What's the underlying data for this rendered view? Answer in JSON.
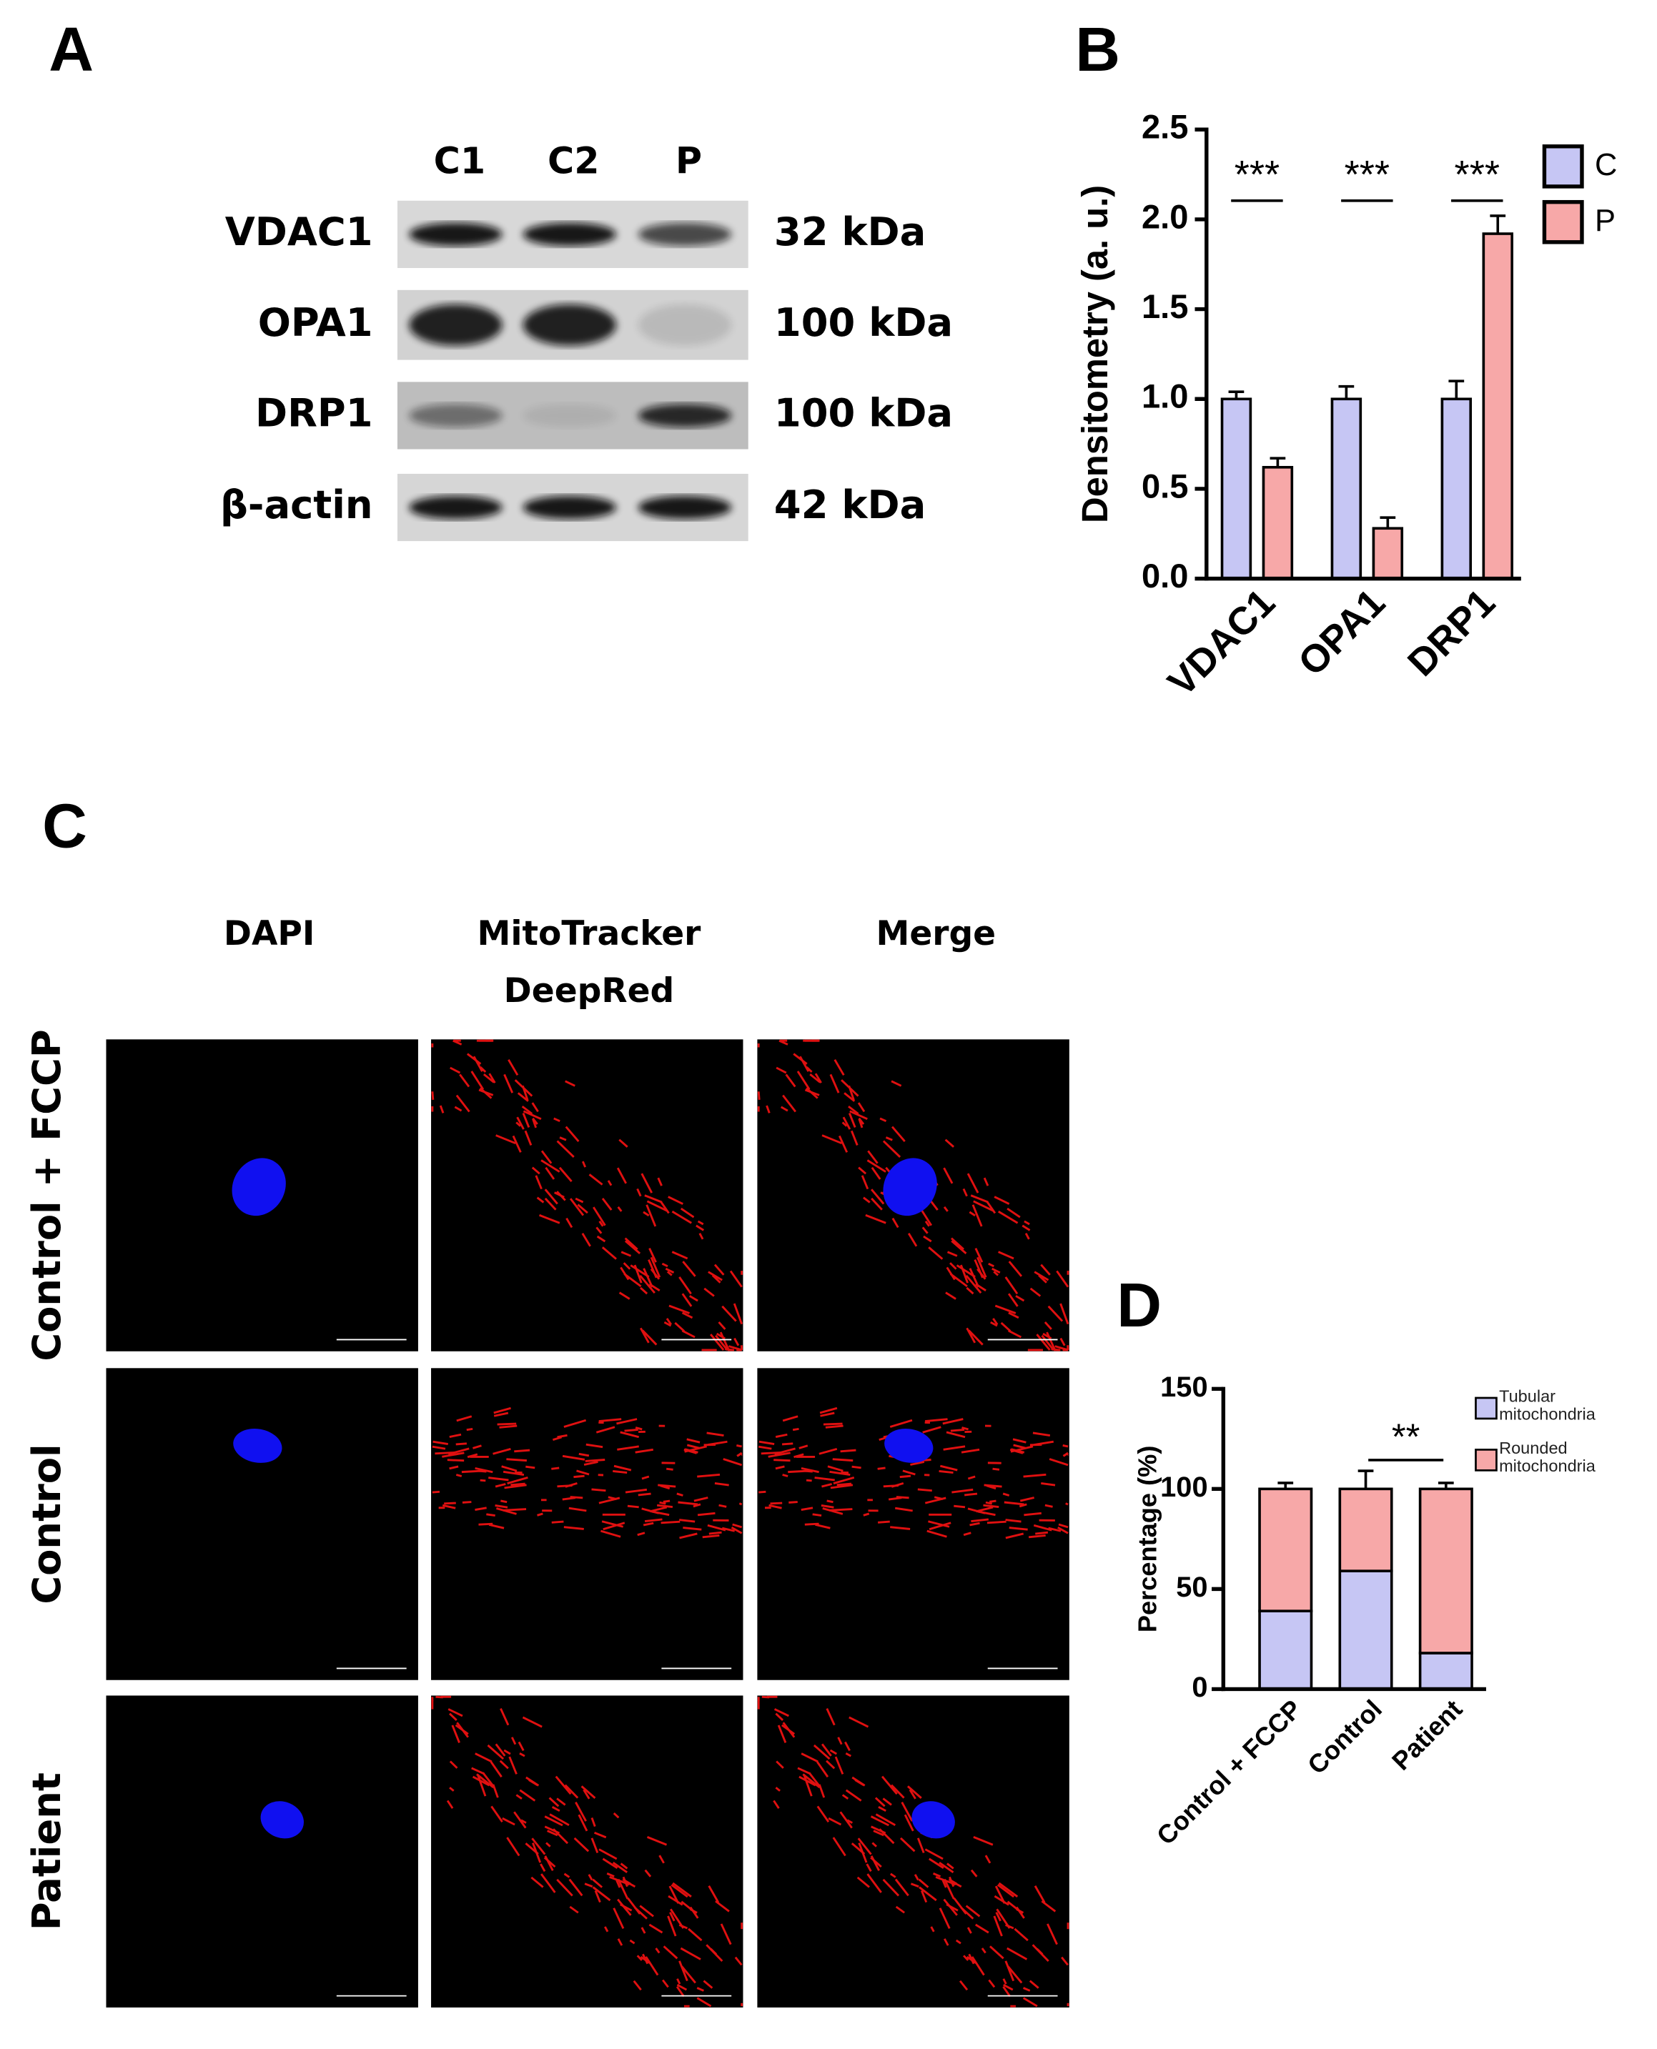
{
  "panel_labels": [
    "A",
    "B",
    "C",
    "D"
  ],
  "western_blot": {
    "lanes": [
      "C1",
      "C2",
      "P"
    ],
    "rows": [
      {
        "protein": "VDAC1",
        "size": "32 kDa"
      },
      {
        "protein": "OPA1",
        "size": "100 kDa"
      },
      {
        "protein": "DRP1",
        "size": "100 kDa"
      },
      {
        "protein": "β-actin",
        "size": "42 kDa"
      }
    ]
  },
  "microscopy": {
    "columns": [
      "DAPI",
      "MitoTracker DeepRed",
      "Merge"
    ],
    "rows": [
      "Control + FCCP",
      "Control",
      "Patient"
    ]
  },
  "chart_data": [
    {
      "type": "bar",
      "y_label": "Densitometry (a. u.)",
      "categories": [
        "VDAC1",
        "OPA1",
        "DRP1"
      ],
      "series": [
        {
          "name": "C",
          "color": "#c6c6f4",
          "values": [
            1.0,
            1.0,
            1.0
          ],
          "errors": [
            0.04,
            0.07,
            0.1
          ]
        },
        {
          "name": "P",
          "color": "#f7a8a8",
          "values": [
            0.62,
            0.28,
            1.92
          ],
          "errors": [
            0.05,
            0.06,
            0.1
          ]
        }
      ],
      "ylim": [
        0,
        2.5
      ],
      "yticks": [
        {
          "value": 0,
          "label": "0.0"
        },
        {
          "value": 0.5,
          "label": "0.5"
        },
        {
          "value": 1,
          "label": "1.0"
        },
        {
          "value": 1.5,
          "label": "1.5"
        },
        {
          "value": 2,
          "label": "2.0"
        },
        {
          "value": 2.5,
          "label": "2.5"
        }
      ],
      "significance": [
        "***",
        "***",
        "***"
      ],
      "legend": "upper right"
    },
    {
      "type": "stacked_bar",
      "y_label": "Percentage (%)",
      "categories": [
        "Control + FCCP",
        "Control",
        "Patient"
      ],
      "series": [
        {
          "name": "Tubular mitochondria",
          "color": "#c6c6f4",
          "values": [
            39,
            59,
            18
          ],
          "errors": [
            3,
            10,
            4
          ]
        },
        {
          "name": "Rounded mitochondria",
          "color": "#f7a8a8",
          "values": [
            61,
            41,
            82
          ],
          "errors": [
            3,
            9,
            3
          ]
        }
      ],
      "ylim": [
        0,
        150
      ],
      "yticks": [
        0,
        50,
        100,
        150
      ],
      "annotation": "**",
      "legend": "upper right"
    }
  ]
}
